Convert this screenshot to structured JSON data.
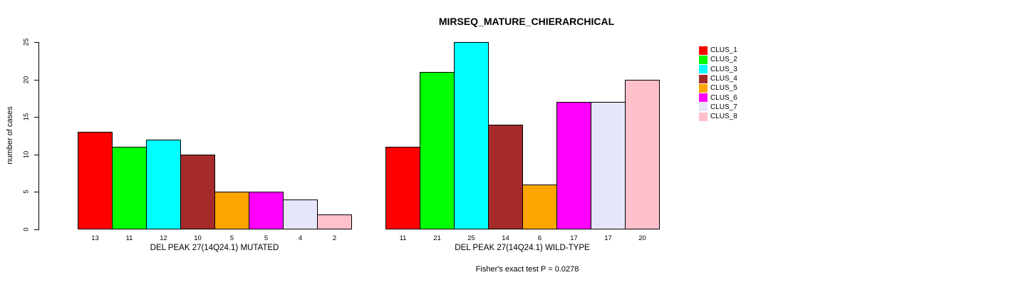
{
  "title": "MIRSEQ_MATURE_CHIERARCHICAL",
  "footer": "Fisher's exact test P = 0.0278",
  "yaxis": {
    "label": "number of cases",
    "ticks": [
      0,
      5,
      10,
      15,
      20,
      25
    ],
    "lim": [
      0,
      25
    ]
  },
  "legend": {
    "position": "right",
    "items": [
      {
        "label": "CLUS_1",
        "color": "#FF0000"
      },
      {
        "label": "CLUS_2",
        "color": "#00FF00"
      },
      {
        "label": "CLUS_3",
        "color": "#00FFFF"
      },
      {
        "label": "CLUS_4",
        "color": "#A52A2A"
      },
      {
        "label": "CLUS_5",
        "color": "#FFA500"
      },
      {
        "label": "CLUS_6",
        "color": "#FF00FF"
      },
      {
        "label": "CLUS_7",
        "color": "#E6E6FA"
      },
      {
        "label": "CLUS_8",
        "color": "#FFC0CB"
      }
    ]
  },
  "chart_data": [
    {
      "type": "bar",
      "group": "MUTATED",
      "xlabel": "DEL PEAK 27(14Q24.1) MUTATED",
      "categories": [
        "CLUS_1",
        "CLUS_2",
        "CLUS_3",
        "CLUS_4",
        "CLUS_5",
        "CLUS_6",
        "CLUS_7",
        "CLUS_8"
      ],
      "values": [
        13,
        11,
        12,
        10,
        5,
        5,
        4,
        2
      ],
      "colors": [
        "#FF0000",
        "#00FF00",
        "#00FFFF",
        "#A52A2A",
        "#FFA500",
        "#FF00FF",
        "#E6E6FA",
        "#FFC0CB"
      ],
      "ylabel": "number of cases",
      "ylim": [
        0,
        25
      ],
      "grid": false,
      "legend_position": "right"
    },
    {
      "type": "bar",
      "group": "WILD-TYPE",
      "xlabel": "DEL PEAK 27(14Q24.1) WILD-TYPE",
      "categories": [
        "CLUS_1",
        "CLUS_2",
        "CLUS_3",
        "CLUS_4",
        "CLUS_5",
        "CLUS_6",
        "CLUS_7",
        "CLUS_8"
      ],
      "values": [
        11,
        21,
        25,
        14,
        6,
        17,
        17,
        20
      ],
      "colors": [
        "#FF0000",
        "#00FF00",
        "#00FFFF",
        "#A52A2A",
        "#FFA500",
        "#FF00FF",
        "#E6E6FA",
        "#FFC0CB"
      ],
      "ylabel": "number of cases",
      "ylim": [
        0,
        25
      ],
      "grid": false,
      "legend_position": "right"
    }
  ]
}
